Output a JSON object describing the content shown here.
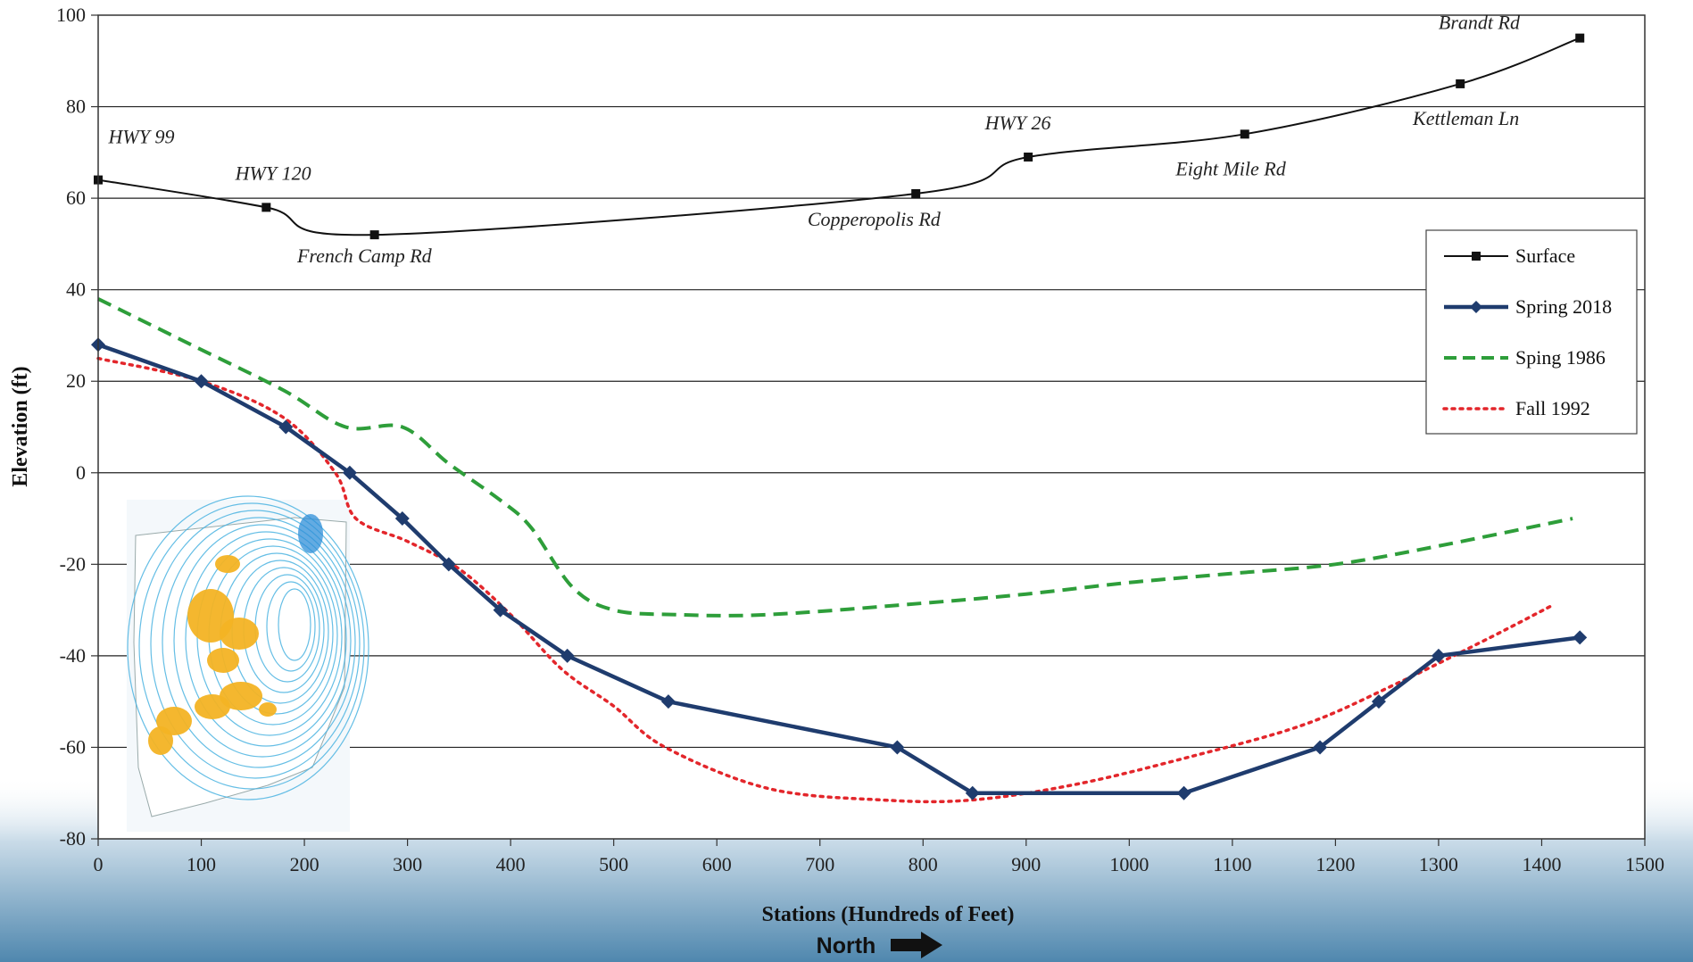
{
  "chart_data": {
    "type": "line",
    "xlabel": "Stations (Hundreds of Feet)",
    "ylabel": "Elevation (ft)",
    "direction_label": "North",
    "xlim": [
      0,
      1500
    ],
    "ylim": [
      -80,
      100
    ],
    "x_ticks": [
      0,
      100,
      200,
      300,
      400,
      500,
      600,
      700,
      800,
      900,
      1000,
      1100,
      1200,
      1300,
      1400,
      1500
    ],
    "y_ticks": [
      -80,
      -60,
      -40,
      -20,
      0,
      20,
      40,
      60,
      80,
      100
    ],
    "grid": "horizontal",
    "legend_position": "right",
    "series": [
      {
        "name": "Surface",
        "color": "#111111",
        "style": "solid-square",
        "points": [
          [
            0,
            64
          ],
          [
            163,
            58
          ],
          [
            268,
            52
          ],
          [
            793,
            61
          ],
          [
            902,
            69
          ],
          [
            1112,
            74
          ],
          [
            1321,
            85
          ],
          [
            1437,
            95
          ]
        ]
      },
      {
        "name": "Spring 2018",
        "color": "#1f3c6e",
        "style": "solid-diamond",
        "points": [
          [
            0,
            28
          ],
          [
            100,
            20
          ],
          [
            182,
            10
          ],
          [
            244,
            0
          ],
          [
            295,
            -10
          ],
          [
            340,
            -20
          ],
          [
            390,
            -30
          ],
          [
            455,
            -40
          ],
          [
            553,
            -50
          ],
          [
            775,
            -60
          ],
          [
            848,
            -70
          ],
          [
            1053,
            -70
          ],
          [
            1185,
            -60
          ],
          [
            1242,
            -50
          ],
          [
            1300,
            -40
          ],
          [
            1437,
            -36
          ]
        ]
      },
      {
        "name": "Sping 1986",
        "color": "#2e9e3a",
        "style": "dashed",
        "points": [
          [
            0,
            38
          ],
          [
            90,
            28
          ],
          [
            180,
            18
          ],
          [
            240,
            10
          ],
          [
            295,
            10
          ],
          [
            340,
            2
          ],
          [
            390,
            -6
          ],
          [
            420,
            -12
          ],
          [
            460,
            -25
          ],
          [
            500,
            -30
          ],
          [
            560,
            -31
          ],
          [
            650,
            -31
          ],
          [
            800,
            -28.5
          ],
          [
            900,
            -26.5
          ],
          [
            1000,
            -24
          ],
          [
            1100,
            -22
          ],
          [
            1200,
            -20
          ],
          [
            1300,
            -16
          ],
          [
            1430,
            -10
          ]
        ]
      },
      {
        "name": "Fall 1992",
        "color": "#e3262b",
        "style": "dotted",
        "points": [
          [
            0,
            25
          ],
          [
            100,
            20
          ],
          [
            180,
            12
          ],
          [
            230,
            0
          ],
          [
            250,
            -10
          ],
          [
            300,
            -15
          ],
          [
            350,
            -21
          ],
          [
            400,
            -31
          ],
          [
            450,
            -43
          ],
          [
            500,
            -51
          ],
          [
            550,
            -60
          ],
          [
            650,
            -69
          ],
          [
            760,
            -71.5
          ],
          [
            848,
            -71.5
          ],
          [
            950,
            -68
          ],
          [
            1060,
            -62
          ],
          [
            1170,
            -55
          ],
          [
            1260,
            -46
          ],
          [
            1350,
            -36
          ],
          [
            1410,
            -29
          ]
        ]
      }
    ],
    "annotations": [
      {
        "text": "HWY 99",
        "x": 10,
        "y": 72
      },
      {
        "text": "HWY 120",
        "x": 133,
        "y": 64
      },
      {
        "text": "French Camp Rd",
        "x": 193,
        "y": 46
      },
      {
        "text": "Copperopolis Rd",
        "x": 688,
        "y": 54
      },
      {
        "text": "HWY 26",
        "x": 860,
        "y": 75
      },
      {
        "text": "Eight Mile Rd",
        "x": 1045,
        "y": 65
      },
      {
        "text": "Brandt Rd",
        "x": 1300,
        "y": 97
      },
      {
        "text": "Kettleman Ln",
        "x": 1275,
        "y": 76
      }
    ]
  }
}
